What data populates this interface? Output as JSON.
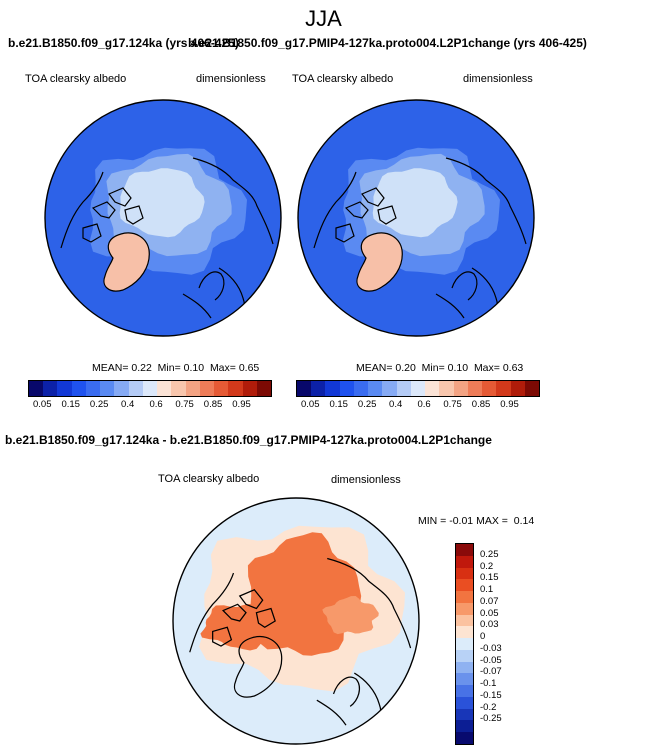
{
  "season": "JJA",
  "panel_top_left": {
    "title": "b.e21.B1850.f09_g17.124ka (yrs 406-425)",
    "variable": "TOA clearsky albedo",
    "units": "dimensionless",
    "stats": {
      "mean_label": "MEAN=",
      "mean": "0.22",
      "min_label": "Min=",
      "min": "0.10",
      "max_label": "Max=",
      "max": "0.65"
    }
  },
  "panel_top_right": {
    "title": "b.e21.B1850.f09_g17.PMIP4-127ka.proto004.L2P1change (yrs 406-425)",
    "variable": "TOA clearsky albedo",
    "units": "dimensionless",
    "stats": {
      "mean_label": "MEAN=",
      "mean": "0.20",
      "min_label": "Min=",
      "min": "0.10",
      "max_label": "Max=",
      "max": "0.63"
    }
  },
  "panel_bottom": {
    "title": "b.e21.B1850.f09_g17.124ka - b.e21.B1850.f09_g17.PMIP4-127ka.proto004.L2P1change",
    "variable": "TOA clearsky albedo",
    "units": "dimensionless",
    "stats": {
      "min_label": "MIN =",
      "min": "-0.01",
      "max_label": "MAX =",
      "max": "0.14"
    }
  },
  "abs_colorbar": {
    "colors": [
      "#08086b",
      "#0c21a8",
      "#1238d6",
      "#1f52ee",
      "#3a6cf0",
      "#5a8af2",
      "#86aaf4",
      "#b4cbf6",
      "#dce8fa",
      "#fbe3d6",
      "#f8c6ad",
      "#f3a383",
      "#ee7c58",
      "#e55a35",
      "#d2391b",
      "#b01c0a",
      "#7c0a04"
    ],
    "tick_labels": [
      "0.05",
      "0.15",
      "0.25",
      "0.4",
      "0.6",
      "0.75",
      "0.85",
      "0.95"
    ]
  },
  "diff_colorbar": {
    "colors": [
      "#8a0a0a",
      "#c0180c",
      "#d83012",
      "#ea4e22",
      "#f27440",
      "#f7996a",
      "#fbc2a0",
      "#fde4d2",
      "#dcecfa",
      "#b8d2f6",
      "#8fb2f1",
      "#6a92ec",
      "#4872e6",
      "#2a52d9",
      "#1836b8",
      "#0c1e94",
      "#080a6e"
    ],
    "tick_labels": [
      "0.25",
      "0.2",
      "0.15",
      "0.1",
      "0.07",
      "0.05",
      "0.03",
      "0",
      "-0.03",
      "-0.05",
      "-0.07",
      "-0.1",
      "-0.15",
      "-0.2",
      "-0.25"
    ]
  },
  "map_colors": {
    "ocean_abs": "#2d62e8",
    "ice_outer": "#8fb2f1",
    "ice_inner": "#cfe1f8",
    "greenland_abs": "#f7c0a8",
    "diff_background": "#dcecfa",
    "diff_positive": "#f27440",
    "diff_light": "#fde4d2"
  }
}
